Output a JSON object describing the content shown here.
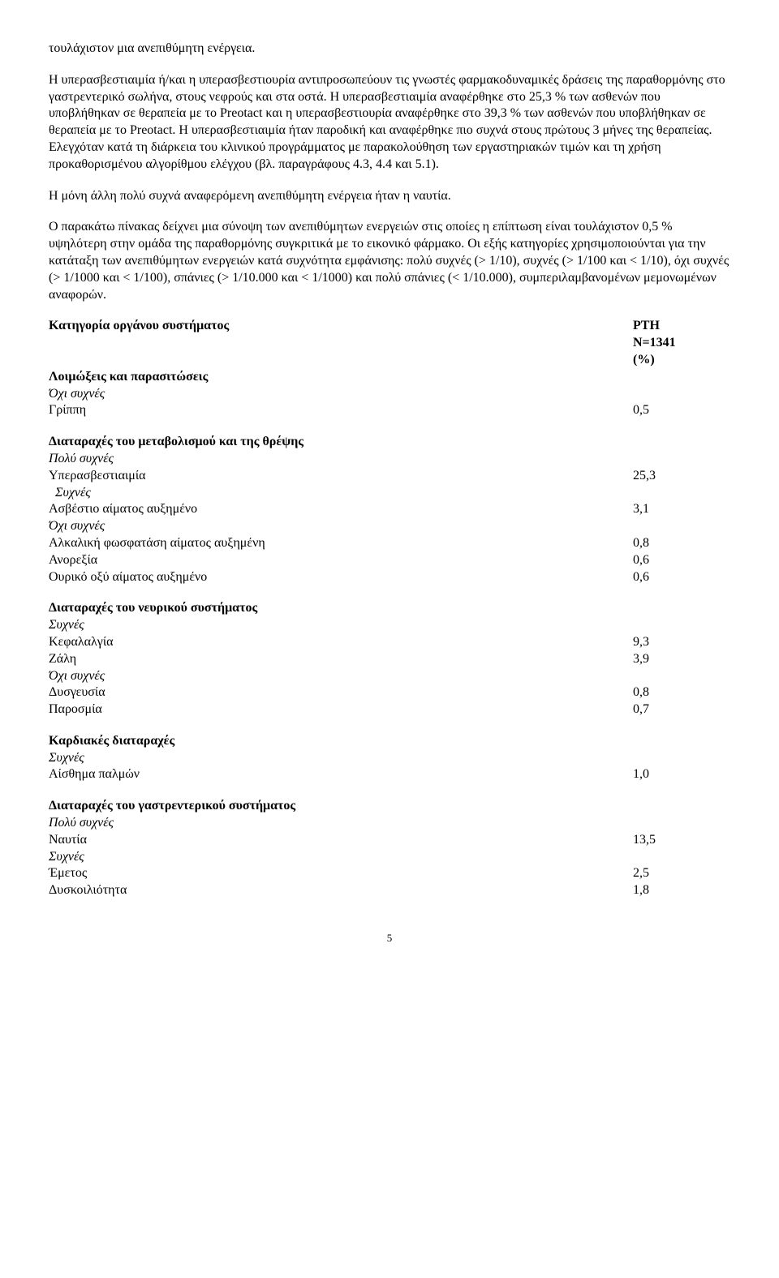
{
  "paragraphs": {
    "p1": "τουλάχιστον μια ανεπιθύμητη ενέργεια.",
    "p2": "Η υπερασβεστιαιμία ή/και η υπερασβεστιουρία αντιπροσωπεύουν τις γνωστές φαρμακοδυναμικές δράσεις της παραθορμόνης στο γαστρεντερικό σωλήνα, στους νεφρούς και στα οστά. Η υπερασβεστιαιμία αναφέρθηκε στο 25,3 % των ασθενών που υποβλήθηκαν σε θεραπεία με το Preotact και η υπερασβεστιουρία αναφέρθηκε στο 39,3 % των ασθενών που υποβλήθηκαν σε θεραπεία με το Preotact. Η υπερασβεστιαιμία ήταν παροδική και αναφέρθηκε πιο συχνά στους πρώτους 3 μήνες της θεραπείας. Ελεγχόταν κατά τη διάρκεια του κλινικού προγράμματος με παρακολούθηση των εργαστηριακών τιμών και τη χρήση προκαθορισμένου αλγορίθμου ελέγχου (βλ. παραγράφους 4.3, 4.4 και 5.1).",
    "p3": "Η μόνη άλλη πολύ συχνά αναφερόμενη ανεπιθύμητη ενέργεια ήταν η ναυτία.",
    "p4": "Ο παρακάτω πίνακας δείχνει μια σύνοψη των ανεπιθύμητων ενεργειών στις οποίες η επίπτωση είναι τουλάχιστον 0,5 % υψηλότερη στην ομάδα της παραθορμόνης συγκριτικά με το εικονικό φάρμακο. Οι εξής κατηγορίες χρησιμοποιούνται για την κατάταξη των ανεπιθύμητων ενεργειών κατά συχνότητα εμφάνισης: πολύ συχνές (> 1/10), συχνές (> 1/100 και < 1/10), όχι συχνές (> 1/1000 και < 1/100), σπάνιες (> 1/10.000 και < 1/1000) και πολύ σπάνιες (< 1/10.000), συμπεριλαμβανομένων μεμονωμένων αναφορών."
  },
  "table": {
    "header_left": "Κατηγορία οργάνου συστήματος",
    "header_right1": "PTH",
    "header_right2": "N=1341",
    "header_right3": "(%)",
    "sections": [
      {
        "title": "Λοιμώξεις και παρασιτώσεις",
        "groups": [
          {
            "freq": "Όχι συχνές",
            "rows": [
              {
                "label": "Γρίππη",
                "value": "0,5"
              }
            ]
          }
        ]
      },
      {
        "title": "Διαταραχές του μεταβολισμού και της θρέψης",
        "groups": [
          {
            "freq": "Πολύ συχνές",
            "rows": [
              {
                "label": "Υπερασβεστιαιμία",
                "value": "25,3"
              }
            ]
          },
          {
            "freq": "Συχνές",
            "indent": true,
            "rows": [
              {
                "label": "Ασβέστιο αίματος αυξημένο",
                "value": "3,1"
              }
            ]
          },
          {
            "freq": "Όχι συχνές",
            "rows": [
              {
                "label": "Αλκαλική φωσφατάση αίματος αυξημένη",
                "value": "0,8"
              },
              {
                "label": "Ανορεξία",
                "value": "0,6"
              },
              {
                "label": "Ουρικό οξύ αίματος αυξημένο",
                "value": "0,6"
              }
            ]
          }
        ]
      },
      {
        "title": "Διαταραχές του νευρικού συστήματος",
        "groups": [
          {
            "freq": "Συχνές",
            "rows": [
              {
                "label": "Κεφαλαλγία",
                "value": "9,3"
              },
              {
                "label": "Ζάλη",
                "value": "3,9"
              }
            ]
          },
          {
            "freq": "Όχι συχνές",
            "rows": [
              {
                "label": "Δυσγευσία",
                "value": "0,8"
              },
              {
                "label": "Παροσμία",
                "value": "0,7"
              }
            ]
          }
        ]
      },
      {
        "title": "Καρδιακές διαταραχές",
        "groups": [
          {
            "freq": "Συχνές",
            "rows": [
              {
                "label": "Αίσθημα παλμών",
                "value": "1,0"
              }
            ]
          }
        ]
      },
      {
        "title": "Διαταραχές του γαστρεντερικού συστήματος",
        "groups": [
          {
            "freq": "Πολύ συχνές",
            "rows": [
              {
                "label": "Ναυτία",
                "value": "13,5"
              }
            ]
          },
          {
            "freq": "Συχνές",
            "rows": [
              {
                "label": "Έμετος",
                "value": "2,5"
              },
              {
                "label": "Δυσκοιλιότητα",
                "value": "1,8"
              }
            ]
          }
        ]
      }
    ]
  },
  "page_number": "5"
}
